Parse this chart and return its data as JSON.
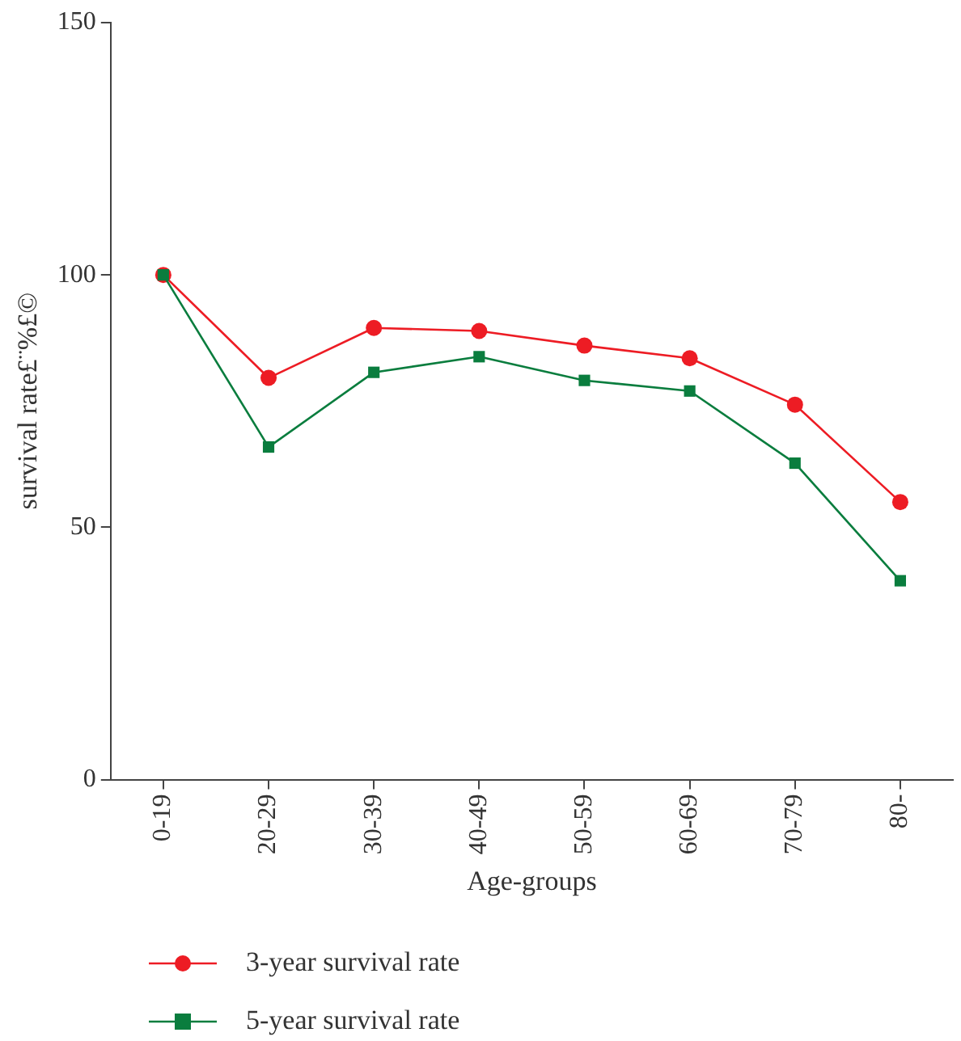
{
  "chart_data": {
    "type": "line",
    "xlabel": "Age-groups",
    "ylabel": "survival rate£¨%£©",
    "categories": [
      "0-19",
      "20-29",
      "30-39",
      "40-49",
      "50-59",
      "60-69",
      "70-79",
      "80-"
    ],
    "series": [
      {
        "name": "3-year survival rate",
        "color": "#ed1c24",
        "marker": "circle",
        "values": [
          100,
          79.6,
          89.5,
          88.9,
          86,
          83.5,
          74.3,
          55
        ]
      },
      {
        "name": "5-year survival rate",
        "color": "#0a7d3e",
        "marker": "square",
        "values": [
          100,
          65.9,
          80.7,
          83.8,
          79.1,
          77,
          62.7,
          39.4
        ]
      }
    ],
    "ylim": [
      0,
      150
    ],
    "yticks": [
      0,
      50,
      100,
      150
    ],
    "grid": false,
    "legend": "bottom left",
    "line_style": "solid"
  }
}
